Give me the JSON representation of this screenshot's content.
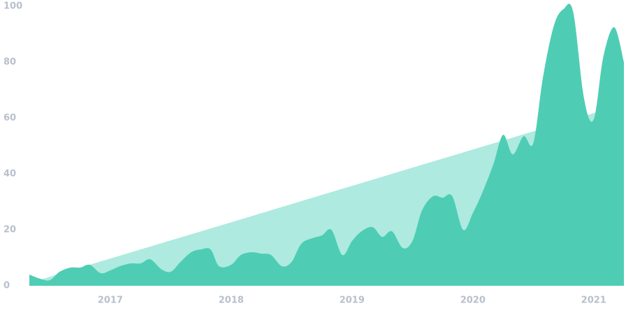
{
  "chart_data": {
    "type": "area",
    "x": [
      2016.33,
      2016.42,
      2016.5,
      2016.58,
      2016.67,
      2016.75,
      2016.83,
      2016.92,
      2017.0,
      2017.08,
      2017.17,
      2017.25,
      2017.33,
      2017.42,
      2017.5,
      2017.58,
      2017.67,
      2017.75,
      2017.83,
      2017.9,
      2018.0,
      2018.08,
      2018.17,
      2018.25,
      2018.33,
      2018.42,
      2018.5,
      2018.58,
      2018.67,
      2018.75,
      2018.83,
      2018.92,
      2019.0,
      2019.08,
      2019.17,
      2019.25,
      2019.33,
      2019.42,
      2019.5,
      2019.58,
      2019.67,
      2019.75,
      2019.83,
      2019.92,
      2020.0,
      2020.08,
      2020.17,
      2020.25,
      2020.33,
      2020.42,
      2020.5,
      2020.58,
      2020.67,
      2020.75,
      2020.83,
      2020.92,
      2021.0,
      2021.08,
      2021.17,
      2021.25
    ],
    "series": [
      {
        "color": "#aeeadf",
        "x": [
          2016.33,
          2021.25
        ],
        "values": [
          1,
          65
        ]
      },
      {
        "color": "#4ecdb4",
        "values": [
          4,
          2.5,
          2,
          5,
          6.5,
          6.5,
          7.5,
          4.5,
          5.5,
          7,
          8,
          8,
          9.5,
          6,
          5,
          8.5,
          12,
          13,
          13,
          7,
          7.5,
          11,
          12,
          11.5,
          11,
          7,
          8.5,
          15,
          17,
          18,
          20,
          11,
          16,
          19.5,
          21,
          17.5,
          19.5,
          13.5,
          16,
          27,
          32,
          31.5,
          32,
          20,
          26,
          33.5,
          43.5,
          54,
          47,
          53.5,
          51,
          74.5,
          93,
          99,
          98,
          67,
          59.5,
          82,
          92.5,
          80
        ]
      }
    ],
    "xlim": [
      2016.33,
      2021.25
    ],
    "xticks": [
      2017,
      2018,
      2019,
      2020,
      2021
    ],
    "ylim": [
      0,
      100
    ],
    "yticks": [
      0,
      20,
      40,
      60,
      80,
      100
    ]
  }
}
